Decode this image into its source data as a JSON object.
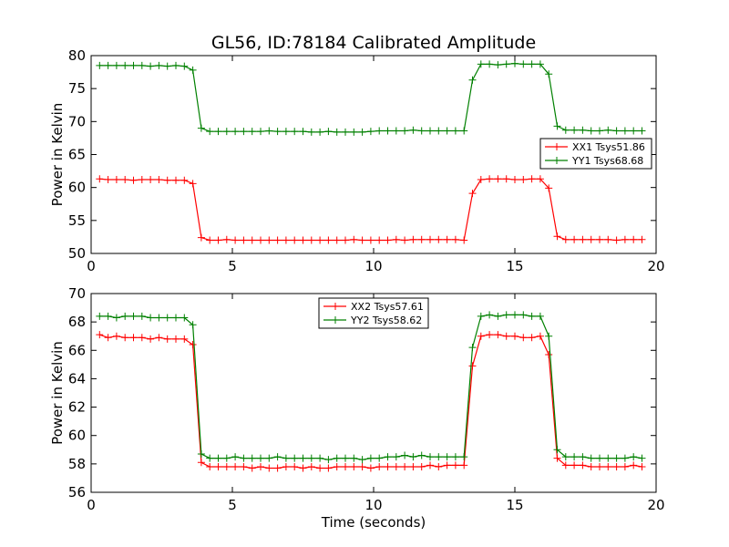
{
  "colors": {
    "xx": "#ff0000",
    "yy": "#008000",
    "frame": "#000000"
  },
  "chart_data": {
    "title": "GL56, ID:78184 Calibrated Amplitude",
    "xlabel": "Time (seconds)",
    "type": "line",
    "panels": [
      {
        "ylabel": "Power in Kelvin",
        "xlim": [
          0,
          20
        ],
        "ylim": [
          50,
          80
        ],
        "xticks": [
          0,
          5,
          10,
          15,
          20
        ],
        "yticks": [
          50,
          55,
          60,
          65,
          70,
          75,
          80
        ],
        "legend_position": "right",
        "x": [
          0.3,
          0.6,
          0.9,
          1.2,
          1.5,
          1.8,
          2.1,
          2.4,
          2.7,
          3.0,
          3.3,
          3.6,
          3.9,
          4.2,
          4.5,
          4.8,
          5.1,
          5.4,
          5.7,
          6.0,
          6.3,
          6.6,
          6.9,
          7.2,
          7.5,
          7.8,
          8.1,
          8.4,
          8.7,
          9.0,
          9.3,
          9.6,
          9.9,
          10.2,
          10.5,
          10.8,
          11.1,
          11.4,
          11.7,
          12.0,
          12.3,
          12.6,
          12.9,
          13.2,
          13.5,
          13.8,
          14.1,
          14.4,
          14.7,
          15.0,
          15.3,
          15.6,
          15.9,
          16.2,
          16.5,
          16.8,
          17.1,
          17.4,
          17.7,
          18.0,
          18.3,
          18.6,
          18.9,
          19.2,
          19.5
        ],
        "series": [
          {
            "name": "XX1 Tsys51.86",
            "color": "#ff0000",
            "values": [
              61.3,
              61.2,
              61.2,
              61.2,
              61.1,
              61.2,
              61.2,
              61.2,
              61.1,
              61.1,
              61.1,
              60.6,
              52.4,
              52.0,
              52.0,
              52.1,
              52.0,
              52.0,
              52.0,
              52.0,
              52.0,
              52.0,
              52.0,
              52.0,
              52.0,
              52.0,
              52.0,
              52.0,
              52.0,
              52.0,
              52.1,
              52.0,
              52.0,
              52.0,
              52.0,
              52.1,
              52.0,
              52.1,
              52.1,
              52.1,
              52.1,
              52.1,
              52.1,
              52.0,
              59.1,
              61.2,
              61.3,
              61.3,
              61.3,
              61.2,
              61.2,
              61.3,
              61.3,
              59.9,
              52.6,
              52.1,
              52.1,
              52.1,
              52.1,
              52.1,
              52.1,
              52.0,
              52.1,
              52.1,
              52.1
            ]
          },
          {
            "name": "YY1 Tsys68.68",
            "color": "#008000",
            "values": [
              78.5,
              78.5,
              78.5,
              78.5,
              78.5,
              78.5,
              78.4,
              78.5,
              78.4,
              78.5,
              78.4,
              77.8,
              69.0,
              68.5,
              68.5,
              68.5,
              68.5,
              68.5,
              68.5,
              68.5,
              68.6,
              68.5,
              68.5,
              68.5,
              68.5,
              68.4,
              68.4,
              68.5,
              68.4,
              68.4,
              68.4,
              68.4,
              68.5,
              68.6,
              68.6,
              68.6,
              68.6,
              68.7,
              68.6,
              68.6,
              68.6,
              68.6,
              68.6,
              68.6,
              76.3,
              78.7,
              78.7,
              78.6,
              78.7,
              78.8,
              78.7,
              78.7,
              78.7,
              77.2,
              69.3,
              68.7,
              68.7,
              68.7,
              68.6,
              68.6,
              68.7,
              68.6,
              68.6,
              68.6,
              68.6
            ]
          }
        ]
      },
      {
        "ylabel": "Power in Kelvin",
        "xlim": [
          0,
          20
        ],
        "ylim": [
          56,
          70
        ],
        "xticks": [
          0,
          5,
          10,
          15,
          20
        ],
        "yticks": [
          56,
          58,
          60,
          62,
          64,
          66,
          68,
          70
        ],
        "legend_position": "upper center",
        "x": [
          0.3,
          0.6,
          0.9,
          1.2,
          1.5,
          1.8,
          2.1,
          2.4,
          2.7,
          3.0,
          3.3,
          3.6,
          3.9,
          4.2,
          4.5,
          4.8,
          5.1,
          5.4,
          5.7,
          6.0,
          6.3,
          6.6,
          6.9,
          7.2,
          7.5,
          7.8,
          8.1,
          8.4,
          8.7,
          9.0,
          9.3,
          9.6,
          9.9,
          10.2,
          10.5,
          10.8,
          11.1,
          11.4,
          11.7,
          12.0,
          12.3,
          12.6,
          12.9,
          13.2,
          13.5,
          13.8,
          14.1,
          14.4,
          14.7,
          15.0,
          15.3,
          15.6,
          15.9,
          16.2,
          16.5,
          16.8,
          17.1,
          17.4,
          17.7,
          18.0,
          18.3,
          18.6,
          18.9,
          19.2,
          19.5
        ],
        "series": [
          {
            "name": "XX2 Tsys57.61",
            "color": "#ff0000",
            "values": [
              67.1,
              66.9,
              67.0,
              66.9,
              66.9,
              66.9,
              66.8,
              66.9,
              66.8,
              66.8,
              66.8,
              66.4,
              58.1,
              57.8,
              57.8,
              57.8,
              57.8,
              57.8,
              57.7,
              57.8,
              57.7,
              57.7,
              57.8,
              57.8,
              57.7,
              57.8,
              57.7,
              57.7,
              57.8,
              57.8,
              57.8,
              57.8,
              57.7,
              57.8,
              57.8,
              57.8,
              57.8,
              57.8,
              57.8,
              57.9,
              57.8,
              57.9,
              57.9,
              57.9,
              64.9,
              67.0,
              67.1,
              67.1,
              67.0,
              67.0,
              66.9,
              66.9,
              67.0,
              65.7,
              58.4,
              57.9,
              57.9,
              57.9,
              57.8,
              57.8,
              57.8,
              57.8,
              57.8,
              57.9,
              57.8
            ]
          },
          {
            "name": "YY2 Tsys58.62",
            "color": "#008000",
            "values": [
              68.4,
              68.4,
              68.3,
              68.4,
              68.4,
              68.4,
              68.3,
              68.3,
              68.3,
              68.3,
              68.3,
              67.8,
              58.7,
              58.4,
              58.4,
              58.4,
              58.5,
              58.4,
              58.4,
              58.4,
              58.4,
              58.5,
              58.4,
              58.4,
              58.4,
              58.4,
              58.4,
              58.3,
              58.4,
              58.4,
              58.4,
              58.3,
              58.4,
              58.4,
              58.5,
              58.5,
              58.6,
              58.5,
              58.6,
              58.5,
              58.5,
              58.5,
              58.5,
              58.5,
              66.2,
              68.4,
              68.5,
              68.4,
              68.5,
              68.5,
              68.5,
              68.4,
              68.4,
              67.0,
              59.0,
              58.5,
              58.5,
              58.5,
              58.4,
              58.4,
              58.4,
              58.4,
              58.4,
              58.5,
              58.4
            ]
          }
        ]
      }
    ]
  }
}
